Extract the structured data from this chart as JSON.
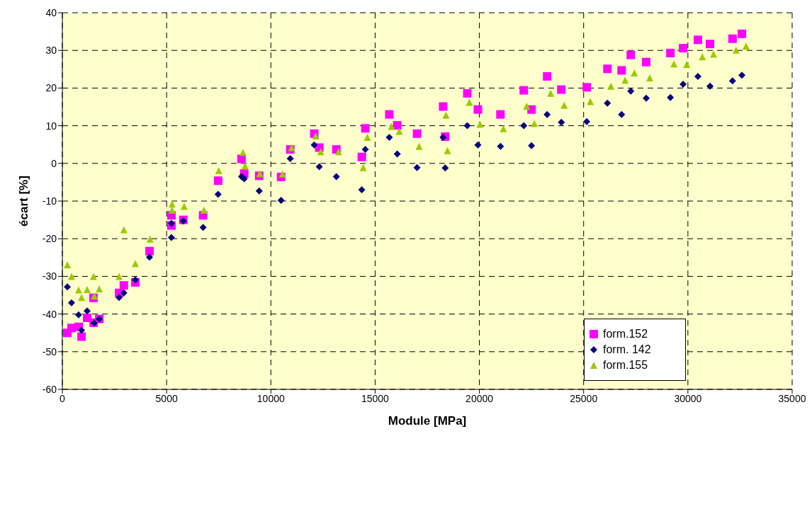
{
  "chart_data": {
    "type": "scatter",
    "xlabel": "Module [MPa]",
    "ylabel": "écart [%]",
    "xlim": [
      0,
      35000
    ],
    "xticks": [
      0,
      5000,
      10000,
      15000,
      20000,
      25000,
      30000,
      35000
    ],
    "ylim": [
      -60,
      40
    ],
    "yticks": [
      -60,
      -50,
      -40,
      -30,
      -20,
      -10,
      0,
      10,
      20,
      30,
      40
    ],
    "grid": true,
    "legend": "bottom right",
    "series": [
      {
        "name": "form.152",
        "color": "#ff00ff",
        "marker": "square",
        "x": [
          240,
          440,
          780,
          920,
          1190,
          1490,
          1500,
          1770,
          2720,
          2950,
          3500,
          4180,
          5230,
          5230,
          5800,
          6750,
          7470,
          8590,
          8720,
          9440,
          10490,
          10930,
          12080,
          12320,
          13140,
          14360,
          14530,
          15680,
          16060,
          17010,
          18260,
          18360,
          19420,
          19930,
          21010,
          22130,
          22500,
          23250,
          23930,
          25150,
          26140,
          26820,
          27260,
          28000,
          29160,
          29770,
          30480,
          31060,
          32140,
          32590
        ],
        "values": [
          -45.0,
          -43.7,
          -43.4,
          -46.0,
          -41.0,
          -35.7,
          -42.3,
          -41.3,
          -34.4,
          -32.4,
          -31.6,
          -23.3,
          -13.8,
          -16.5,
          -15.0,
          -13.8,
          -4.6,
          1.2,
          -2.7,
          -3.3,
          -3.6,
          3.7,
          7.9,
          4.2,
          3.7,
          1.7,
          9.3,
          13.0,
          10.1,
          7.9,
          15.1,
          7.1,
          18.6,
          14.3,
          13.0,
          19.4,
          14.3,
          23.1,
          19.6,
          20.2,
          25.1,
          24.7,
          28.8,
          26.9,
          29.3,
          30.6,
          32.8,
          31.7,
          33.1,
          34.4
        ]
      },
      {
        "name": "form. 142",
        "color": "#000080",
        "marker": "diamond",
        "x": [
          240,
          440,
          780,
          920,
          1190,
          1530,
          1770,
          2720,
          2950,
          3500,
          4180,
          5230,
          5230,
          5800,
          6750,
          7470,
          8590,
          8720,
          9440,
          10490,
          10930,
          12080,
          12320,
          13140,
          14360,
          14530,
          15680,
          16060,
          17010,
          18260,
          18360,
          19420,
          19930,
          21010,
          22130,
          22500,
          23250,
          23930,
          25150,
          26140,
          26820,
          27260,
          28000,
          29160,
          29770,
          30480,
          31060,
          32140,
          32590
        ],
        "values": [
          -32.8,
          -37.0,
          -40.2,
          -44.3,
          -39.2,
          -42.4,
          -41.3,
          -35.6,
          -34.4,
          -30.9,
          -24.9,
          -15.9,
          -19.7,
          -15.3,
          -17.0,
          -8.2,
          -3.5,
          -4.1,
          -7.3,
          -9.8,
          1.3,
          4.9,
          -0.9,
          -3.5,
          -7.0,
          3.7,
          6.9,
          2.5,
          -1.1,
          6.9,
          -1.2,
          10.0,
          4.9,
          4.5,
          10.0,
          4.7,
          13.0,
          10.9,
          11.1,
          16.0,
          13.0,
          19.2,
          17.3,
          17.5,
          21.0,
          23.1,
          20.5,
          21.9,
          23.4
        ]
      },
      {
        "name": "form.155",
        "color": "#99cc00",
        "marker": "triangle",
        "x": [
          240,
          440,
          780,
          920,
          1190,
          1490,
          1530,
          1770,
          2720,
          2950,
          3500,
          4210,
          5260,
          5260,
          5840,
          6790,
          7500,
          8660,
          8760,
          9470,
          10560,
          11000,
          12150,
          12390,
          13240,
          14430,
          14630,
          15780,
          16160,
          17110,
          18400,
          18470,
          19520,
          20030,
          21150,
          22270,
          22640,
          23420,
          24070,
          25320,
          26310,
          26990,
          27430,
          28170,
          29330,
          29940,
          30690,
          31230,
          32310,
          32790
        ],
        "values": [
          -26.9,
          -30.0,
          -33.6,
          -35.6,
          -33.5,
          -30.0,
          -35.2,
          -33.3,
          -30.0,
          -17.6,
          -26.6,
          -20.1,
          -10.8,
          -12.4,
          -11.4,
          -12.4,
          -1.9,
          2.9,
          -0.7,
          -2.7,
          -2.8,
          4.2,
          7.3,
          3.1,
          3.1,
          -1.1,
          6.9,
          9.8,
          8.5,
          4.5,
          12.8,
          3.4,
          16.2,
          10.4,
          9.2,
          15.2,
          10.6,
          18.6,
          15.4,
          16.4,
          20.5,
          22.1,
          24.0,
          22.7,
          26.4,
          26.3,
          28.3,
          29.0,
          30.1,
          31.1
        ]
      }
    ]
  }
}
